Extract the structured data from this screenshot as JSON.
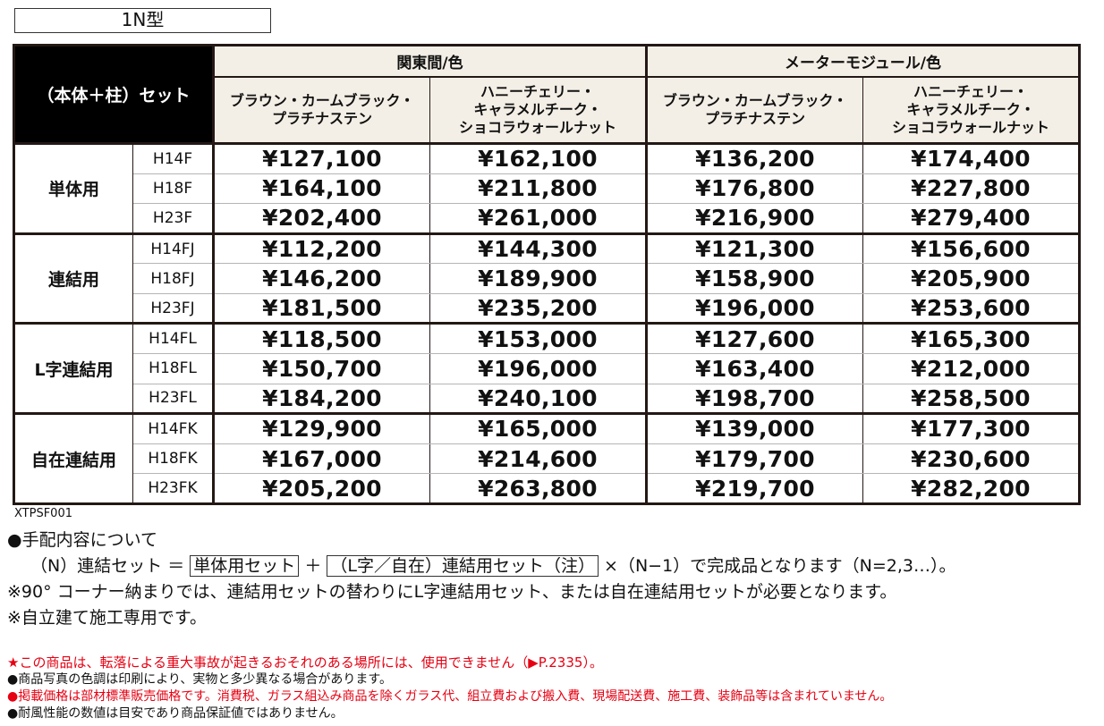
{
  "title": "1N型",
  "table": {
    "corner_label": "（本体＋柱）セット",
    "groups": [
      {
        "label": "関東間/色"
      },
      {
        "label": "メーターモジュール/色"
      }
    ],
    "columns": [
      {
        "line1": "ブラウン・カームブラック・",
        "line2": "プラチナステン",
        "line3": ""
      },
      {
        "line1": "ハニーチェリー・",
        "line2": "キャラメルチーク・",
        "line3": "ショコラウォールナット"
      },
      {
        "line1": "ブラウン・カームブラック・",
        "line2": "プラチナステン",
        "line3": ""
      },
      {
        "line1": "ハニーチェリー・",
        "line2": "キャラメルチーク・",
        "line3": "ショコラウォールナット"
      }
    ],
    "row_groups": [
      {
        "label": "単体用",
        "rows": [
          {
            "size": "H14F",
            "prices": [
              "¥127,100",
              "¥162,100",
              "¥136,200",
              "¥174,400"
            ]
          },
          {
            "size": "H18F",
            "prices": [
              "¥164,100",
              "¥211,800",
              "¥176,800",
              "¥227,800"
            ]
          },
          {
            "size": "H23F",
            "prices": [
              "¥202,400",
              "¥261,000",
              "¥216,900",
              "¥279,400"
            ]
          }
        ]
      },
      {
        "label": "連結用",
        "rows": [
          {
            "size": "H14FJ",
            "prices": [
              "¥112,200",
              "¥144,300",
              "¥121,300",
              "¥156,600"
            ]
          },
          {
            "size": "H18FJ",
            "prices": [
              "¥146,200",
              "¥189,900",
              "¥158,900",
              "¥205,900"
            ]
          },
          {
            "size": "H23FJ",
            "prices": [
              "¥181,500",
              "¥235,200",
              "¥196,000",
              "¥253,600"
            ]
          }
        ]
      },
      {
        "label": "L字連結用",
        "rows": [
          {
            "size": "H14FL",
            "prices": [
              "¥118,500",
              "¥153,000",
              "¥127,600",
              "¥165,300"
            ]
          },
          {
            "size": "H18FL",
            "prices": [
              "¥150,700",
              "¥196,000",
              "¥163,400",
              "¥212,000"
            ]
          },
          {
            "size": "H23FL",
            "prices": [
              "¥184,200",
              "¥240,100",
              "¥198,700",
              "¥258,500"
            ]
          }
        ]
      },
      {
        "label": "自在連結用",
        "rows": [
          {
            "size": "H14FK",
            "prices": [
              "¥129,900",
              "¥165,000",
              "¥139,000",
              "¥177,300"
            ]
          },
          {
            "size": "H18FK",
            "prices": [
              "¥167,000",
              "¥214,600",
              "¥179,700",
              "¥230,600"
            ]
          },
          {
            "size": "H23FK",
            "prices": [
              "¥205,200",
              "¥263,800",
              "¥219,700",
              "¥282,200"
            ]
          }
        ]
      }
    ]
  },
  "product_code": "XTPSF001",
  "notes": {
    "heading": "●手配内容について",
    "formula_prefix": "（N）連結セット ＝ ",
    "formula_box1": "単体用セット",
    "formula_plus": " ＋ ",
    "formula_box2": "（L字／自在）連結用セット（注）",
    "formula_suffix": " ×（N−1）で完成品となります（N=2,3…）。",
    "note1": "※90° コーナー納まりでは、連結用セットの替わりにL字連結用セット、または自在連結用セットが必要となります。",
    "note2": "※自立建て施工専用です。"
  },
  "fine_print": {
    "warning": "★この商品は、転落による重大事故が起きるおそれのある場所には、使用できません（▶P.2335）。",
    "photo_note": "●商品写真の色調は印刷により、実物と多少異なる場合があります。",
    "price_note": "●掲載価格は部材標準販売価格です。消費税、ガラス組込み商品を除くガラス代、組立費および搬入費、現場配送費、施工費、装飾品等は含まれていません。",
    "performance_note": "●耐風性能の数値は目安であり商品保証値ではありません。"
  },
  "colors": {
    "header_bg": "#f4efe6",
    "corner_bg": "#000000",
    "border": "#231815",
    "warning_red": "#e60012"
  }
}
